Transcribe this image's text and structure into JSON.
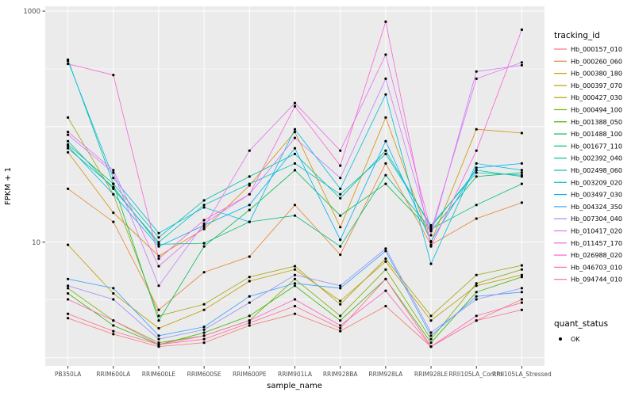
{
  "chart_data": {
    "type": "line",
    "title": "",
    "xlabel": "sample_name",
    "ylabel": "FPKM + 1",
    "y_scale": "log10",
    "ylim": [
      0.85,
      1100
    ],
    "y_ticks": [
      {
        "value": 1000,
        "label": "1000"
      },
      {
        "value": 10,
        "label": "10"
      }
    ],
    "grid": {
      "major_values": [
        1,
        10,
        100,
        1000
      ],
      "minor_values": [
        3.162,
        31.62,
        316.2
      ]
    },
    "panel_bg": "#EBEBEB",
    "grid_color": "#FFFFFF",
    "point_color": "#000000",
    "axis_text_color": "#4D4D4D",
    "categories": [
      "PB350LA",
      "RRIM600LA",
      "RRIM600LE",
      "RRIM600SE",
      "RRIM600PE",
      "RRIM901LA",
      "RRIM928BA",
      "RRIM928LA",
      "RRIM928LE",
      "RRII105LA_Control",
      "RRII105LA_Stressed"
    ],
    "legend": {
      "title": "tracking_id",
      "position": "right"
    },
    "quant_legend": {
      "title": "quant_status",
      "items": [
        {
          "label": "OK",
          "symbol": "point"
        }
      ]
    },
    "series": [
      {
        "name": "Hb_000157_010",
        "color": "#F8766D",
        "values": [
          2.2,
          1.6,
          1.25,
          1.35,
          1.9,
          2.4,
          1.7,
          2.8,
          1.25,
          2.1,
          3.2
        ]
      },
      {
        "name": "Hb_000260_060",
        "color": "#EA8331",
        "values": [
          29,
          15,
          2.6,
          5.5,
          7.5,
          21,
          7.8,
          48,
          9.5,
          16,
          22
        ]
      },
      {
        "name": "Hb_000380_180",
        "color": "#D89000",
        "values": [
          60,
          18,
          7.6,
          13,
          31,
          90,
          13.5,
          120,
          10,
          95,
          88
        ]
      },
      {
        "name": "Hb_000397_070",
        "color": "#C09B00",
        "values": [
          9.5,
          3.6,
          1.8,
          2.6,
          4.6,
          5.8,
          3.1,
          6.8,
          2.1,
          4.2,
          5.2
        ]
      },
      {
        "name": "Hb_000427_030",
        "color": "#A3A500",
        "values": [
          120,
          26,
          2.3,
          2.9,
          5.0,
          6.2,
          2.9,
          7.2,
          2.3,
          5.2,
          6.3
        ]
      },
      {
        "name": "Hb_000494_100",
        "color": "#7CAE00",
        "values": [
          4.0,
          2.1,
          1.35,
          1.55,
          2.1,
          4.8,
          2.3,
          5.8,
          1.45,
          4.4,
          5.8
        ]
      },
      {
        "name": "Hb_001388_050",
        "color": "#39B600",
        "values": [
          3.6,
          1.9,
          1.3,
          1.65,
          2.3,
          4.2,
          2.1,
          4.8,
          1.35,
          3.7,
          5.0
        ]
      },
      {
        "name": "Hb_001488_100",
        "color": "#00BB4E",
        "values": [
          70,
          32,
          2.1,
          9.2,
          19,
          42,
          17,
          32,
          12.5,
          37,
          40
        ]
      },
      {
        "name": "Hb_001677_110",
        "color": "#00BF7D",
        "values": [
          65,
          30,
          9.6,
          9.8,
          15,
          17,
          9.2,
          38,
          13,
          21,
          32
        ]
      },
      {
        "name": "Hb_002392_040",
        "color": "#00C1A3",
        "values": [
          380,
          32,
          11,
          23,
          37,
          58,
          24,
          62,
          13.5,
          42,
          37
        ]
      },
      {
        "name": "Hb_002498_060",
        "color": "#00BFC4",
        "values": [
          75,
          29,
          10,
          21,
          32,
          48,
          26,
          58,
          14,
          40,
          38
        ]
      },
      {
        "name": "Hb_003209_020",
        "color": "#00BAE0",
        "values": [
          370,
          36,
          12,
          20,
          15,
          95,
          29,
          190,
          6.5,
          48,
          42
        ]
      },
      {
        "name": "Hb_003497_030",
        "color": "#00B0F6",
        "values": [
          68,
          26,
          9.2,
          14,
          21,
          65,
          10.5,
          75,
          10.2,
          44,
          48
        ]
      },
      {
        "name": "Hb_004324_350",
        "color": "#35A2FF",
        "values": [
          4.8,
          4.0,
          1.55,
          1.85,
          3.4,
          4.4,
          4.0,
          8.4,
          1.55,
          3.4,
          3.7
        ]
      },
      {
        "name": "Hb_007304_040",
        "color": "#9590FF",
        "values": [
          4.2,
          3.2,
          1.45,
          1.75,
          3.0,
          5.2,
          4.2,
          8.8,
          1.65,
          3.2,
          4.0
        ]
      },
      {
        "name": "Hb_010417_020",
        "color": "#C77CFF",
        "values": [
          85,
          40,
          4.2,
          14.5,
          26,
          80,
          36,
          260,
          11.5,
          300,
          340
        ]
      },
      {
        "name": "Hb_011457_170",
        "color": "#E76BF3",
        "values": [
          90,
          42,
          6.2,
          13.5,
          62,
          160,
          62,
          420,
          12.5,
          260,
          360
        ]
      },
      {
        "name": "Hb_026988_020",
        "color": "#FA62DB",
        "values": [
          350,
          280,
          7.2,
          15.5,
          26,
          150,
          46,
          810,
          9.2,
          62,
          690
        ]
      },
      {
        "name": "Hb_046703_010",
        "color": "#FF62BC",
        "values": [
          3.2,
          2.1,
          1.3,
          1.55,
          2.1,
          3.2,
          1.9,
          3.8,
          1.25,
          2.3,
          3.0
        ]
      },
      {
        "name": "Hb_094744_010",
        "color": "#FF6A98",
        "values": [
          2.4,
          1.7,
          1.3,
          1.45,
          2.0,
          2.8,
          1.8,
          4.8,
          1.25,
          2.1,
          2.6
        ]
      }
    ]
  }
}
